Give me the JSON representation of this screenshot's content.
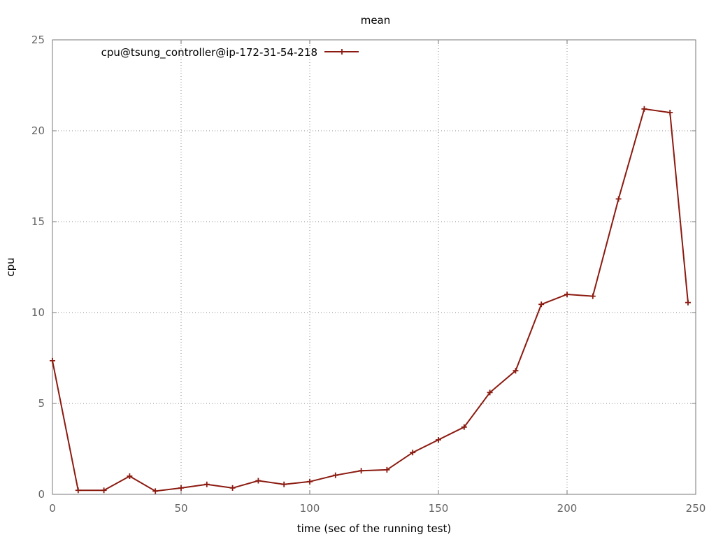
{
  "chart_data": {
    "type": "line",
    "title": "mean",
    "xlabel": "time (sec of the running test)",
    "ylabel": "cpu",
    "xlim": [
      0,
      250
    ],
    "ylim": [
      0,
      25
    ],
    "xticks": [
      0,
      50,
      100,
      150,
      200,
      250
    ],
    "yticks": [
      0,
      5,
      10,
      15,
      20,
      25
    ],
    "grid": true,
    "legend_position": "top-left",
    "series": [
      {
        "name": "cpu@tsung_controller@ip-172-31-54-218",
        "color": "#8b1a10",
        "marker": "plus",
        "x": [
          0,
          10,
          20,
          30,
          40,
          50,
          60,
          70,
          80,
          90,
          100,
          110,
          120,
          130,
          140,
          150,
          160,
          170,
          180,
          190,
          200,
          210,
          220,
          230,
          240,
          247
        ],
        "y": [
          7.35,
          0.22,
          0.22,
          1.0,
          0.18,
          0.35,
          0.55,
          0.35,
          0.75,
          0.55,
          0.7,
          1.05,
          1.3,
          1.35,
          2.3,
          3.0,
          3.7,
          5.6,
          6.8,
          10.45,
          11.0,
          10.9,
          16.25,
          21.2,
          21.0,
          10.55
        ]
      }
    ]
  }
}
